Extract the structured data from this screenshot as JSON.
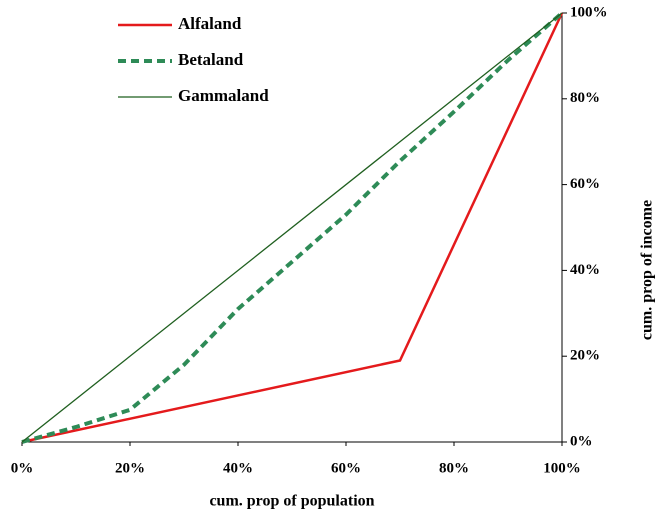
{
  "chart_data": {
    "type": "line",
    "x_label": "cum. prop of population",
    "y_label": "cum. prop of income",
    "xlim": [
      0,
      100
    ],
    "ylim": [
      0,
      100
    ],
    "xticks": [
      {
        "value": 0,
        "label": "0%"
      },
      {
        "value": 20,
        "label": "20%"
      },
      {
        "value": 40,
        "label": "40%"
      },
      {
        "value": 60,
        "label": "60%"
      },
      {
        "value": 80,
        "label": "80%"
      },
      {
        "value": 100,
        "label": "100%"
      }
    ],
    "yticks": [
      {
        "value": 0,
        "label": "0%"
      },
      {
        "value": 20,
        "label": "20%"
      },
      {
        "value": 40,
        "label": "40%"
      },
      {
        "value": 60,
        "label": "60%"
      },
      {
        "value": 80,
        "label": "80%"
      },
      {
        "value": 100,
        "label": "100%"
      }
    ],
    "y_axis_side": "right",
    "series": [
      {
        "name": "Alfaland",
        "color": "#e41a1c",
        "dash": "solid",
        "x": [
          0,
          70,
          100
        ],
        "values": [
          0,
          19,
          100
        ]
      },
      {
        "name": "Betaland",
        "color": "#2e8b57",
        "dash": "dashed",
        "x": [
          0,
          10,
          20,
          30,
          40,
          50,
          60,
          70,
          80,
          90,
          100
        ],
        "values": [
          0,
          3.5,
          7.5,
          18,
          31,
          42,
          53,
          65.5,
          77,
          89,
          100
        ]
      },
      {
        "name": "Gammaland",
        "color": "#1f5f1f",
        "dash": "solid",
        "x": [
          0,
          100
        ],
        "values": [
          0,
          100
        ]
      }
    ]
  }
}
